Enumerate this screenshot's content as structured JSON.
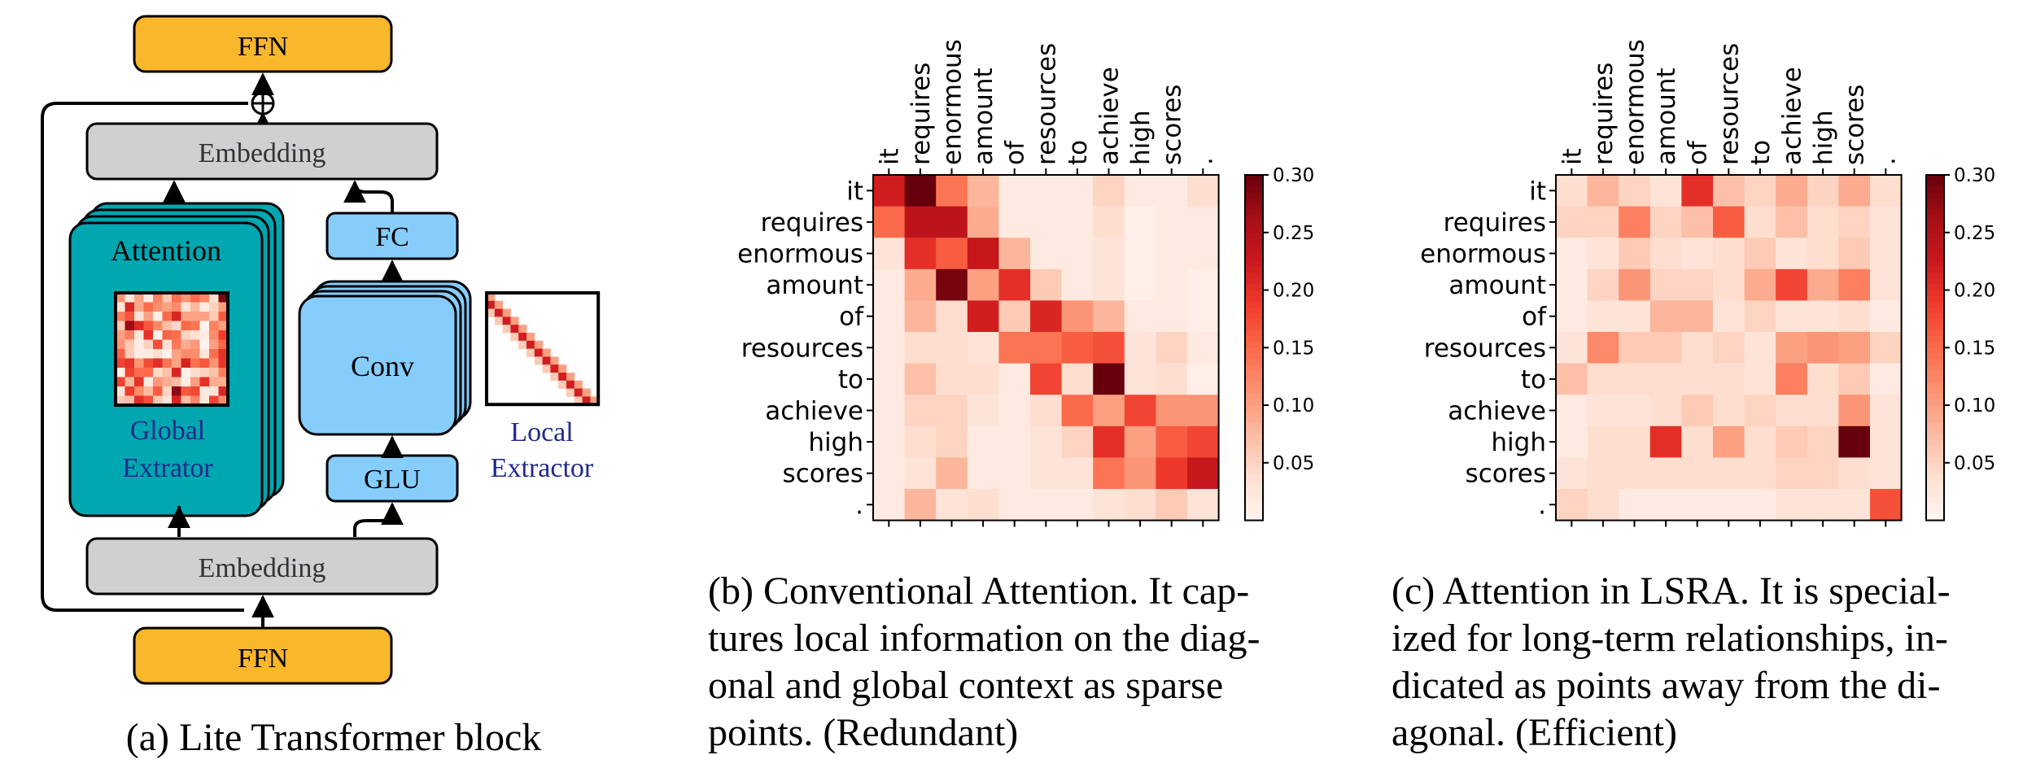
{
  "block": {
    "ffn_top": "FFN",
    "embedding_top": "Embedding",
    "attention_label": "Attention",
    "global_label_1": "Global",
    "global_label_2": "Extrator",
    "fc_label": "FC",
    "conv_label": "Conv",
    "glu_label": "GLU",
    "local_label_1": "Local",
    "local_label_2": "Extractor",
    "embedding_bottom": "Embedding",
    "ffn_bottom": "FFN",
    "caption": "(a) Lite Transformer block"
  },
  "colors": {
    "ffn": "#f9b72c",
    "embedding": "#cfd0d2",
    "attention": "#00a6b0",
    "conv": "#86cdfc",
    "caption_blue": "#1f2a88"
  },
  "chart_data": [
    {
      "type": "heatmap",
      "tokens": [
        "it",
        "requires",
        "enormous",
        "amount",
        "of",
        "resources",
        "to",
        "achieve",
        "high",
        "scores",
        "."
      ],
      "colorbar": {
        "min": 0,
        "max": 0.3,
        "ticks": [
          "0.05",
          "0.10",
          "0.15",
          "0.20",
          "0.25",
          "0.30"
        ]
      },
      "values": [
        [
          0.22,
          0.3,
          0.14,
          0.08,
          0.02,
          0.02,
          0.02,
          0.05,
          0.02,
          0.02,
          0.04
        ],
        [
          0.15,
          0.24,
          0.24,
          0.09,
          0.02,
          0.02,
          0.02,
          0.04,
          0.01,
          0.02,
          0.02
        ],
        [
          0.03,
          0.2,
          0.16,
          0.23,
          0.08,
          0.02,
          0.02,
          0.03,
          0.01,
          0.02,
          0.02
        ],
        [
          0.02,
          0.09,
          0.29,
          0.1,
          0.2,
          0.06,
          0.02,
          0.03,
          0.01,
          0.02,
          0.01
        ],
        [
          0.02,
          0.08,
          0.04,
          0.22,
          0.06,
          0.21,
          0.11,
          0.08,
          0.02,
          0.02,
          0.01
        ],
        [
          0.02,
          0.04,
          0.04,
          0.03,
          0.14,
          0.14,
          0.16,
          0.17,
          0.03,
          0.05,
          0.02
        ],
        [
          0.02,
          0.07,
          0.04,
          0.04,
          0.02,
          0.18,
          0.04,
          0.3,
          0.03,
          0.04,
          0.01
        ],
        [
          0.02,
          0.05,
          0.05,
          0.03,
          0.02,
          0.04,
          0.15,
          0.1,
          0.18,
          0.11,
          0.11
        ],
        [
          0.02,
          0.04,
          0.05,
          0.02,
          0.02,
          0.03,
          0.05,
          0.2,
          0.1,
          0.16,
          0.18
        ],
        [
          0.02,
          0.03,
          0.08,
          0.02,
          0.02,
          0.03,
          0.03,
          0.14,
          0.11,
          0.19,
          0.23
        ],
        [
          0.02,
          0.08,
          0.03,
          0.04,
          0.02,
          0.02,
          0.02,
          0.03,
          0.04,
          0.06,
          0.03
        ]
      ]
    },
    {
      "type": "heatmap",
      "tokens": [
        "it",
        "requires",
        "enormous",
        "amount",
        "of",
        "resources",
        "to",
        "achieve",
        "high",
        "scores",
        "."
      ],
      "colorbar": {
        "min": 0,
        "max": 0.3,
        "ticks": [
          "0.05",
          "0.10",
          "0.15",
          "0.20",
          "0.25",
          "0.30"
        ]
      },
      "values": [
        [
          0.04,
          0.08,
          0.05,
          0.03,
          0.2,
          0.07,
          0.05,
          0.09,
          0.05,
          0.09,
          0.04
        ],
        [
          0.05,
          0.05,
          0.13,
          0.05,
          0.07,
          0.16,
          0.04,
          0.07,
          0.04,
          0.05,
          0.03
        ],
        [
          0.02,
          0.03,
          0.06,
          0.04,
          0.03,
          0.04,
          0.06,
          0.03,
          0.04,
          0.06,
          0.03
        ],
        [
          0.02,
          0.05,
          0.11,
          0.05,
          0.05,
          0.04,
          0.09,
          0.18,
          0.09,
          0.13,
          0.03
        ],
        [
          0.02,
          0.03,
          0.03,
          0.08,
          0.08,
          0.03,
          0.05,
          0.03,
          0.03,
          0.04,
          0.02
        ],
        [
          0.03,
          0.12,
          0.06,
          0.06,
          0.04,
          0.05,
          0.03,
          0.1,
          0.11,
          0.1,
          0.05
        ],
        [
          0.07,
          0.04,
          0.04,
          0.04,
          0.04,
          0.04,
          0.03,
          0.13,
          0.04,
          0.06,
          0.02
        ],
        [
          0.02,
          0.03,
          0.03,
          0.04,
          0.06,
          0.04,
          0.05,
          0.04,
          0.04,
          0.11,
          0.03
        ],
        [
          0.02,
          0.04,
          0.04,
          0.2,
          0.04,
          0.1,
          0.04,
          0.06,
          0.05,
          0.3,
          0.03
        ],
        [
          0.03,
          0.04,
          0.04,
          0.04,
          0.04,
          0.04,
          0.04,
          0.05,
          0.05,
          0.04,
          0.03
        ],
        [
          0.05,
          0.04,
          0.02,
          0.02,
          0.02,
          0.02,
          0.02,
          0.03,
          0.03,
          0.03,
          0.17
        ]
      ]
    }
  ],
  "captions": {
    "b": [
      "(b) Conventional Attention. It cap-",
      "tures local information on the diag-",
      "onal and global context as sparse",
      "points. (Redundant)"
    ],
    "c": [
      "(c) Attention in LSRA. It is special-",
      "ized for long-term relationships, in-",
      "dicated as points away from the di-",
      "agonal. (Efficient)"
    ]
  }
}
